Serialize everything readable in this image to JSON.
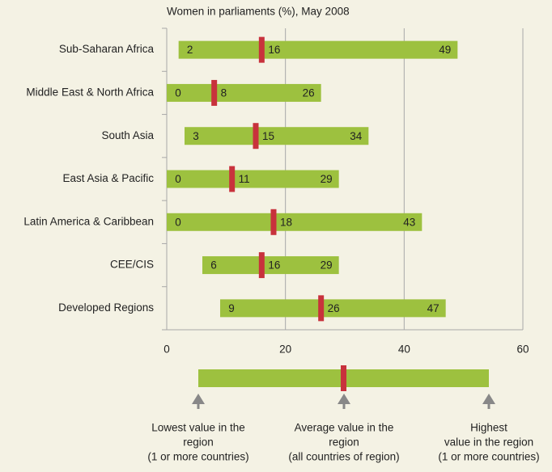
{
  "chart_data": {
    "type": "range",
    "title": "Women in parliaments (%), May 2008",
    "categories": [
      "Sub-Saharan Africa",
      "Middle East & North Africa",
      "South Asia",
      "East Asia & Pacific",
      "Latin America & Caribbean",
      "CEE/CIS",
      "Developed Regions"
    ],
    "min": [
      2,
      0,
      3,
      0,
      0,
      6,
      9
    ],
    "avg": [
      16,
      8,
      15,
      11,
      18,
      16,
      26
    ],
    "max": [
      49,
      26,
      34,
      29,
      43,
      29,
      47
    ],
    "bar_color": "#9dc13f",
    "marker_color": "#c8323c",
    "xlim": [
      0,
      60
    ],
    "xticks": [
      0,
      20,
      40,
      60
    ],
    "grid": true,
    "legend": {
      "low": [
        "Lowest value in the",
        "region",
        "(1 or more countries)"
      ],
      "average": [
        "Average value in the",
        "region",
        "(all countries of region)"
      ],
      "high": [
        "Highest",
        "value in the region",
        "(1 or more countries)"
      ]
    }
  }
}
